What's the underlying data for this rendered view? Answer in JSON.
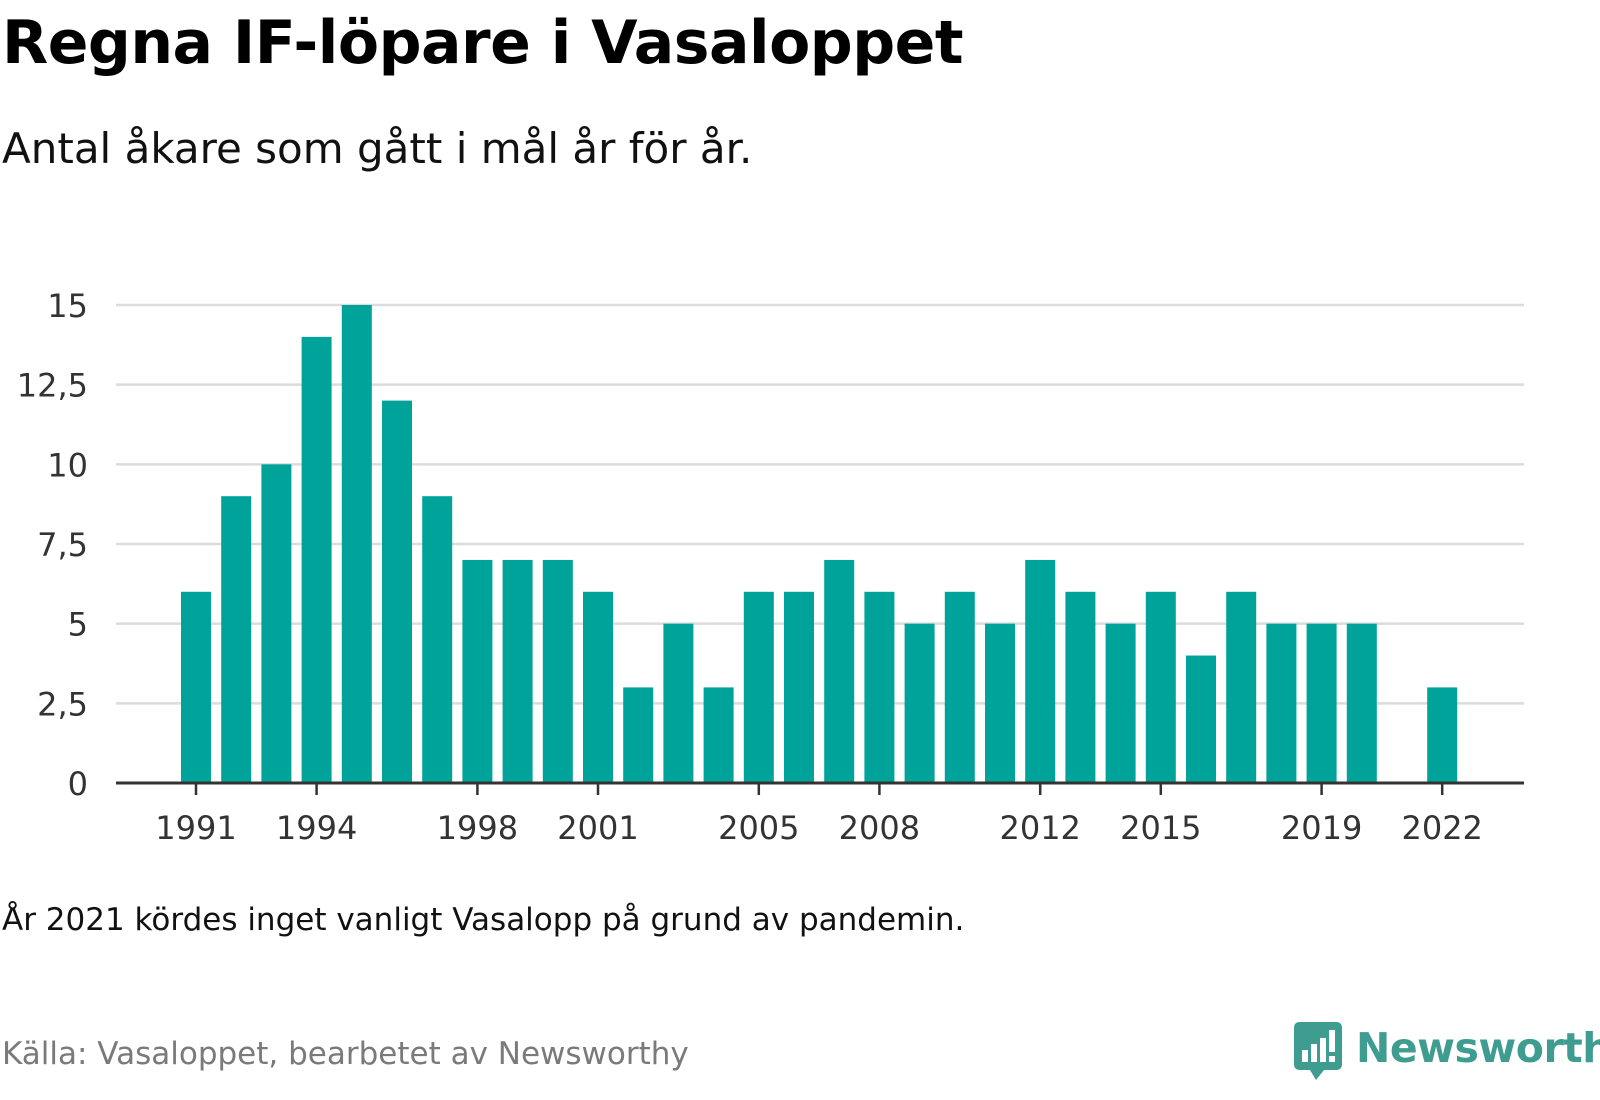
{
  "title": "Regna IF-löpare i Vasaloppet",
  "subtitle": "Antal åkare som gått i mål år för år.",
  "note": "År 2021 kördes inget vanligt Vasalopp på grund av pandemin.",
  "source": "Källa: Vasaloppet, bearbetet av Newsworthy",
  "brand": {
    "name": "Newsworthy",
    "icon": "newsworthy-logo-icon",
    "color": "#3f9c90"
  },
  "colors": {
    "bar": "#00a39a",
    "grid": "#dcdcdc",
    "axis": "#333333",
    "tick_text": "#333333"
  },
  "chart_data": {
    "type": "bar",
    "title": "Regna IF-löpare i Vasaloppet",
    "subtitle": "Antal åkare som gått i mål år för år.",
    "xlabel": "",
    "ylabel": "",
    "ylim": [
      0,
      15
    ],
    "yticks": [
      0,
      2.5,
      5,
      7.5,
      10,
      12.5,
      15
    ],
    "ytick_labels": [
      "0",
      "2,5",
      "5",
      "7,5",
      "10",
      "12,5",
      "15"
    ],
    "xtick_labels": [
      "1991",
      "1994",
      "1998",
      "2001",
      "2005",
      "2008",
      "2012",
      "2015",
      "2019",
      "2022"
    ],
    "grid": true,
    "legend": "none",
    "categories": [
      1991,
      1992,
      1993,
      1994,
      1995,
      1996,
      1997,
      1998,
      1999,
      2000,
      2001,
      2002,
      2003,
      2004,
      2005,
      2006,
      2007,
      2008,
      2009,
      2010,
      2011,
      2012,
      2013,
      2014,
      2015,
      2016,
      2017,
      2018,
      2019,
      2020,
      2021,
      2022
    ],
    "values": [
      6,
      9,
      10,
      14,
      15,
      12,
      9,
      7,
      7,
      7,
      6,
      3,
      5,
      3,
      6,
      6,
      7,
      6,
      5,
      6,
      5,
      7,
      6,
      5,
      6,
      4,
      6,
      5,
      5,
      5,
      null,
      3
    ]
  }
}
